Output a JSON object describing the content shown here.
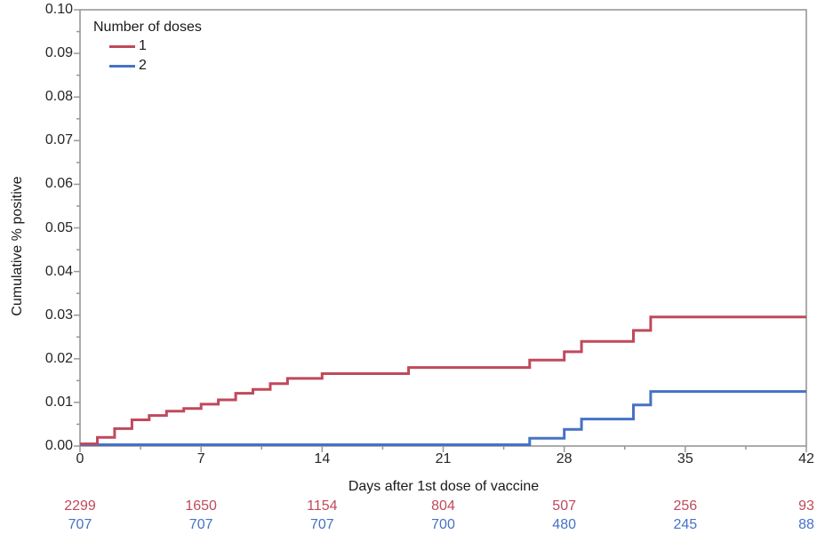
{
  "style": {
    "background": "#ffffff",
    "frame_color": "#989898",
    "text_color": "#262626"
  },
  "chart_data": {
    "type": "line",
    "variant": "step-cumulative-incidence",
    "title": "",
    "xlabel": "Days after 1st dose of vaccine",
    "ylabel": "Cumulative % positive",
    "xlim": [
      0,
      42
    ],
    "ylim": [
      0,
      0.1
    ],
    "grid": false,
    "x_major_ticks": [
      0,
      7,
      14,
      21,
      28,
      35,
      42
    ],
    "x_tick_labels": [
      "0",
      "7",
      "14",
      "21",
      "28",
      "35",
      "42"
    ],
    "x_minor_ticks": [
      3.5,
      10.5,
      17.5,
      24.5,
      31.5,
      38.5
    ],
    "y_major_ticks": [
      0,
      0.01,
      0.02,
      0.03,
      0.04,
      0.05,
      0.06,
      0.07,
      0.08,
      0.09,
      0.1
    ],
    "y_tick_labels": [
      "0.00",
      "0.01",
      "0.02",
      "0.03",
      "0.04",
      "0.05",
      "0.06",
      "0.07",
      "0.08",
      "0.09",
      "0.10"
    ],
    "y_minor_ticks": [
      0.005,
      0.015,
      0.025,
      0.035,
      0.045,
      0.055,
      0.065,
      0.075,
      0.085,
      0.095
    ],
    "legend_title": "Number of doses",
    "legend_position": "inside-top-left",
    "series": [
      {
        "name": "1",
        "color": "#c0495b",
        "steps": [
          [
            0,
            0.0005
          ],
          [
            1,
            0.002
          ],
          [
            2,
            0.004
          ],
          [
            3,
            0.006
          ],
          [
            4,
            0.007
          ],
          [
            5,
            0.008
          ],
          [
            6,
            0.0086
          ],
          [
            7,
            0.0096
          ],
          [
            8,
            0.0106
          ],
          [
            9,
            0.0121
          ],
          [
            10,
            0.013
          ],
          [
            11,
            0.0143
          ],
          [
            12,
            0.0155
          ],
          [
            14,
            0.0166
          ],
          [
            19,
            0.018
          ],
          [
            26,
            0.0197
          ],
          [
            28,
            0.0216
          ],
          [
            29,
            0.024
          ],
          [
            32,
            0.0265
          ],
          [
            33,
            0.0296
          ]
        ],
        "end_x": 42
      },
      {
        "name": "2",
        "color": "#4672c6",
        "steps": [
          [
            0,
            0.0003
          ],
          [
            26,
            0.0018
          ],
          [
            28,
            0.0038
          ],
          [
            29,
            0.0062
          ],
          [
            32,
            0.0094
          ],
          [
            33,
            0.0125
          ]
        ],
        "end_x": 42
      }
    ],
    "at_risk_table": {
      "x": [
        0,
        7,
        14,
        21,
        28,
        35,
        42
      ],
      "rows": [
        {
          "series": "1",
          "color": "#c0495b",
          "values": [
            2299,
            1650,
            1154,
            804,
            507,
            256,
            93
          ]
        },
        {
          "series": "2",
          "color": "#4672c6",
          "values": [
            707,
            707,
            707,
            700,
            480,
            245,
            88
          ]
        }
      ]
    }
  }
}
